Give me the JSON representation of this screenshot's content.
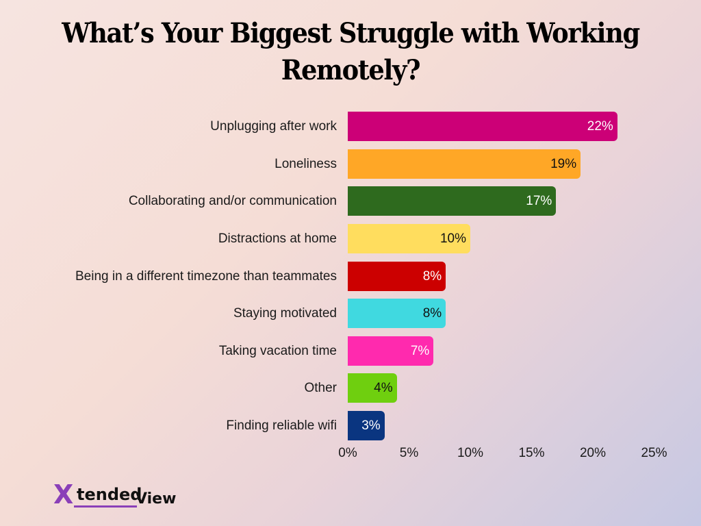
{
  "chart_data": {
    "type": "bar",
    "orientation": "horizontal",
    "title": "What’s Your Biggest Struggle with Working Remotely?",
    "title_lines": [
      "What’s Your Biggest Struggle with Working",
      "Remotely?"
    ],
    "categories": [
      "Unplugging after work",
      "Loneliness",
      "Collaborating and/or communication",
      "Distractions at home",
      "Being in a different timezone than teammates",
      "Staying motivated",
      "Taking vacation time",
      "Other",
      "Finding reliable wifi"
    ],
    "values": [
      22,
      19,
      17,
      10,
      8,
      8,
      7,
      4,
      3
    ],
    "value_labels": [
      "22%",
      "19%",
      "17%",
      "10%",
      "8%",
      "8%",
      "7%",
      "4%",
      "3%"
    ],
    "colors": [
      "#cc0077",
      "#ffa726",
      "#2e6a1e",
      "#ffdd5e",
      "#cc0000",
      "#40d9e0",
      "#ff2aae",
      "#6fcf0f",
      "#0a3580"
    ],
    "label_colors": [
      "#ffffff",
      "#111111",
      "#ffffff",
      "#111111",
      "#ffffff",
      "#111111",
      "#ffffff",
      "#111111",
      "#ffffff"
    ],
    "xlabel": "",
    "ylabel": "",
    "xlim": [
      0,
      25
    ],
    "xticks": [
      "0%",
      "5%",
      "10%",
      "15%",
      "20%",
      "25%"
    ],
    "grid": false,
    "legend": "none"
  },
  "brand": {
    "logo_x": "X",
    "logo_part1": "tended",
    "logo_part2": "View"
  }
}
